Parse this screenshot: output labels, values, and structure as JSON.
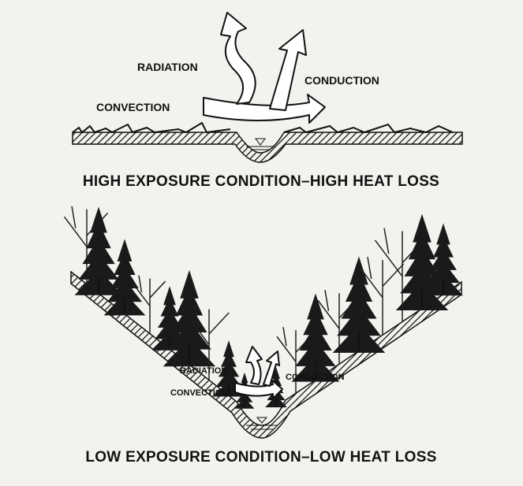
{
  "panels": [
    {
      "labels": {
        "radiation": "RADIATION",
        "conduction": "CONDUCTION",
        "convection": "CONVECTION"
      },
      "caption": "HIGH EXPOSURE CONDITION–HIGH HEAT LOSS"
    },
    {
      "labels": {
        "radiation": "RADIATION",
        "conduction": "CONDUCTION",
        "convection": "CONVECTION"
      },
      "caption": "LOW EXPOSURE CONDITION–LOW HEAT LOSS"
    }
  ]
}
